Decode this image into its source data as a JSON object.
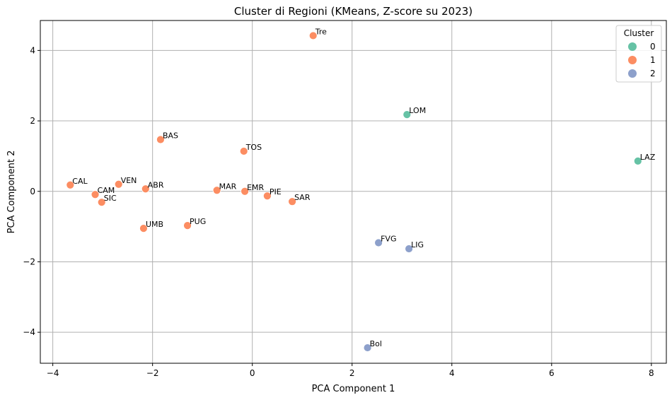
{
  "chart_data": {
    "type": "scatter",
    "title": "Cluster di Regioni (KMeans, Z-score su 2023)",
    "xlabel": "PCA Component 1",
    "ylabel": "PCA Component 2",
    "xlim": [
      -4.25,
      8.3
    ],
    "ylim": [
      -4.88,
      4.85
    ],
    "xticks": [
      -4,
      -2,
      0,
      2,
      4,
      6,
      8
    ],
    "yticks": [
      -4,
      -2,
      0,
      2,
      4
    ],
    "grid": true,
    "legend": {
      "title": "Cluster",
      "placement": "top-right"
    },
    "series": [
      {
        "name": "0",
        "color": "#66c2a5",
        "points": [
          {
            "label": "LOM",
            "x": 3.1,
            "y": 2.18
          },
          {
            "label": "LAZ",
            "x": 7.73,
            "y": 0.86
          }
        ]
      },
      {
        "name": "1",
        "color": "#fc8d62",
        "points": [
          {
            "label": "Tre",
            "x": 1.22,
            "y": 4.42
          },
          {
            "label": "BAS",
            "x": -1.84,
            "y": 1.47
          },
          {
            "label": "TOS",
            "x": -0.17,
            "y": 1.14
          },
          {
            "label": "CAL",
            "x": -3.65,
            "y": 0.18
          },
          {
            "label": "VEN",
            "x": -2.68,
            "y": 0.2
          },
          {
            "label": "ABR",
            "x": -2.14,
            "y": 0.07
          },
          {
            "label": "CAM",
            "x": -3.15,
            "y": -0.09
          },
          {
            "label": "SIC",
            "x": -3.02,
            "y": -0.31
          },
          {
            "label": "MAR",
            "x": -0.71,
            "y": 0.03
          },
          {
            "label": "EMR",
            "x": -0.15,
            "y": 0.0
          },
          {
            "label": "PIE",
            "x": 0.3,
            "y": -0.13
          },
          {
            "label": "SAR",
            "x": 0.8,
            "y": -0.29
          },
          {
            "label": "UMB",
            "x": -2.18,
            "y": -1.05
          },
          {
            "label": "PUG",
            "x": -1.3,
            "y": -0.97
          }
        ]
      },
      {
        "name": "2",
        "color": "#8da0cb",
        "points": [
          {
            "label": "FVG",
            "x": 2.53,
            "y": -1.46
          },
          {
            "label": "LIG",
            "x": 3.14,
            "y": -1.63
          },
          {
            "label": "Bol",
            "x": 2.31,
            "y": -4.44
          }
        ]
      }
    ]
  }
}
